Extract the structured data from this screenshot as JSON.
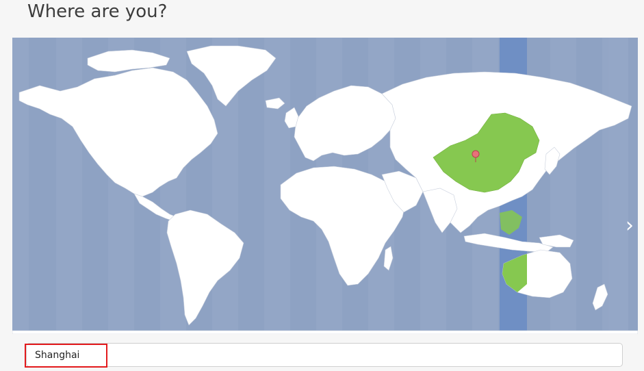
{
  "page": {
    "title": "Where are you?"
  },
  "map": {
    "ocean_color": "#8ea2c3",
    "land_color": "#ffffff",
    "selected_region_color": "#86c850",
    "selected_zone_color": "#6f8fc4",
    "marker_color": "#e8717a",
    "next_icon": "chevron-right-icon"
  },
  "location": {
    "value": "Shanghai"
  },
  "colors": {
    "highlight": "#e3191c"
  }
}
